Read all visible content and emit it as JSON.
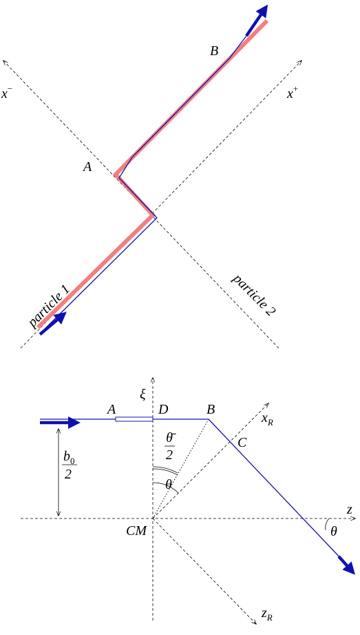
{
  "top": {
    "axes": [
      {
        "text": "x",
        "sup": "−"
      },
      {
        "text": "x",
        "sup": "+"
      }
    ],
    "points": [
      "A",
      "B"
    ],
    "particles": [
      "particle 1",
      "particle 2"
    ]
  },
  "bottom": {
    "axes": [
      {
        "text": "ξ"
      },
      {
        "text": "z"
      },
      {
        "text": "x",
        "sub": "R"
      },
      {
        "text": "z",
        "sub": "R"
      }
    ],
    "points": [
      "A",
      "D",
      "B",
      "C",
      "CM"
    ],
    "angles": [
      {
        "num": "θ̄",
        "den": "2"
      },
      "θ",
      "θ"
    ],
    "impact": {
      "num": "b",
      "sub": "0",
      "den": "2"
    }
  }
}
